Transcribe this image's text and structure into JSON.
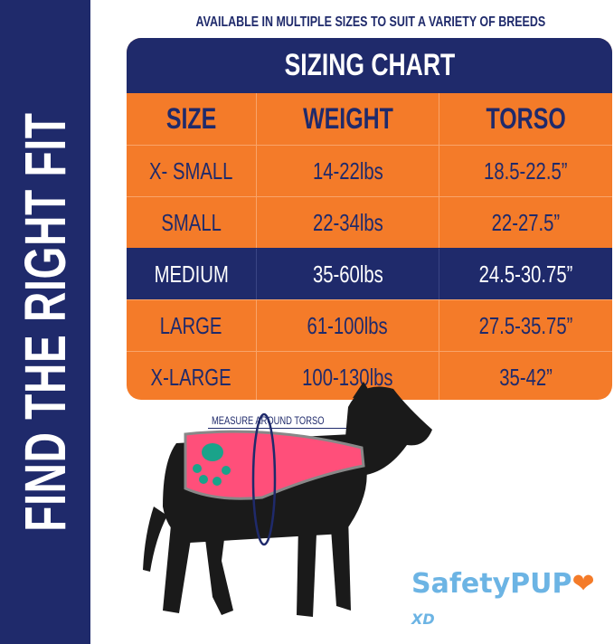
{
  "sidebar": {
    "title": "FIND THE RIGHT FIT"
  },
  "subtitle": "AVAILABLE IN MULTIPLE SIZES TO SUIT A VARIETY OF BREEDS",
  "table": {
    "title": "SIZING CHART",
    "columns": [
      "SIZE",
      "WEIGHT",
      "TORSO"
    ],
    "rows": [
      [
        "X- SMALL",
        "14-22lbs",
        "18.5-22.5”"
      ],
      [
        "SMALL",
        "22-34lbs",
        "22-27.5”"
      ],
      [
        "MEDIUM",
        "35-60lbs",
        "24.5-30.75”"
      ],
      [
        "LARGE",
        "61-100lbs",
        "27.5-35.75”"
      ],
      [
        "X-LARGE",
        "100-130lbs",
        "35-42”"
      ]
    ],
    "highlighted_row": "MEDIUM"
  },
  "measure_label": "MEASURE AROUND TORSO",
  "logo": {
    "text": "SafetyPUP",
    "suffix": "XD"
  },
  "colors": {
    "navy": "#1f2a6b",
    "orange": "#f47b29",
    "vest_pink": "#ff4f7a",
    "logo_blue": "#6cb4e4"
  }
}
